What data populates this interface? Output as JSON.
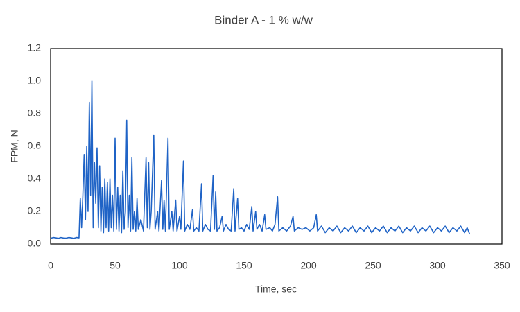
{
  "chart_data": {
    "type": "line",
    "title": "Binder A - 1 % w/w",
    "x_label": "Time, sec",
    "y_label": "FPM, N",
    "color": "#1f63c6",
    "grid": false,
    "xlim": [
      0,
      350
    ],
    "xticks": [
      0,
      50,
      100,
      150,
      200,
      250,
      300,
      350
    ],
    "ylim": [
      0,
      1.2
    ],
    "yticks": [
      {
        "value": 0,
        "label": "0.0"
      },
      0.2,
      0.4,
      0.6,
      0.8,
      {
        "value": 1,
        "label": "1.0"
      },
      1.2
    ],
    "x": [
      0,
      2,
      4,
      6,
      8,
      10,
      12,
      14,
      16,
      18,
      20,
      22,
      23,
      24,
      25,
      26,
      27,
      28,
      29,
      30,
      31,
      32,
      33,
      34,
      35,
      36,
      37,
      38,
      39,
      40,
      41,
      42,
      43,
      44,
      45,
      46,
      47,
      48,
      49,
      50,
      51,
      52,
      53,
      54,
      55,
      56,
      57,
      58,
      59,
      60,
      61,
      62,
      63,
      64,
      65,
      66,
      67,
      68,
      70,
      72,
      74,
      75,
      76,
      77,
      78,
      80,
      81,
      83,
      84,
      86,
      87,
      88,
      89,
      91,
      92,
      94,
      95,
      97,
      98,
      100,
      101,
      103,
      104,
      106,
      108,
      110,
      111,
      113,
      115,
      117,
      118,
      120,
      122,
      124,
      126,
      127,
      128,
      129,
      131,
      133,
      134,
      136,
      138,
      140,
      142,
      143,
      145,
      146,
      148,
      150,
      152,
      154,
      156,
      157,
      159,
      160,
      162,
      164,
      166,
      167,
      170,
      172,
      174,
      176,
      177,
      180,
      183,
      186,
      188,
      189,
      192,
      195,
      198,
      201,
      204,
      206,
      207,
      210,
      213,
      216,
      219,
      222,
      225,
      228,
      231,
      234,
      237,
      240,
      243,
      246,
      249,
      252,
      255,
      258,
      261,
      264,
      267,
      270,
      273,
      276,
      279,
      282,
      285,
      288,
      291,
      294,
      297,
      300,
      303,
      306,
      309,
      312,
      315,
      318,
      321,
      323,
      325
    ],
    "values": [
      0.035,
      0.04,
      0.038,
      0.035,
      0.04,
      0.037,
      0.036,
      0.04,
      0.038,
      0.035,
      0.04,
      0.038,
      0.28,
      0.1,
      0.3,
      0.55,
      0.15,
      0.6,
      0.2,
      0.87,
      0.3,
      1.0,
      0.1,
      0.5,
      0.25,
      0.59,
      0.1,
      0.48,
      0.08,
      0.35,
      0.07,
      0.4,
      0.1,
      0.38,
      0.08,
      0.4,
      0.1,
      0.3,
      0.08,
      0.65,
      0.09,
      0.35,
      0.08,
      0.3,
      0.07,
      0.45,
      0.09,
      0.2,
      0.76,
      0.1,
      0.3,
      0.08,
      0.53,
      0.09,
      0.2,
      0.08,
      0.28,
      0.09,
      0.15,
      0.08,
      0.53,
      0.1,
      0.5,
      0.09,
      0.2,
      0.67,
      0.09,
      0.2,
      0.08,
      0.39,
      0.09,
      0.27,
      0.08,
      0.65,
      0.09,
      0.2,
      0.08,
      0.27,
      0.08,
      0.17,
      0.09,
      0.51,
      0.08,
      0.12,
      0.09,
      0.21,
      0.08,
      0.1,
      0.08,
      0.37,
      0.08,
      0.12,
      0.09,
      0.08,
      0.42,
      0.09,
      0.32,
      0.08,
      0.1,
      0.17,
      0.08,
      0.12,
      0.09,
      0.08,
      0.34,
      0.08,
      0.28,
      0.09,
      0.1,
      0.08,
      0.12,
      0.09,
      0.23,
      0.08,
      0.2,
      0.09,
      0.12,
      0.08,
      0.18,
      0.09,
      0.1,
      0.08,
      0.12,
      0.29,
      0.08,
      0.1,
      0.08,
      0.11,
      0.17,
      0.08,
      0.1,
      0.09,
      0.1,
      0.08,
      0.1,
      0.18,
      0.08,
      0.11,
      0.07,
      0.1,
      0.08,
      0.11,
      0.07,
      0.1,
      0.08,
      0.11,
      0.07,
      0.1,
      0.08,
      0.11,
      0.07,
      0.1,
      0.08,
      0.11,
      0.07,
      0.1,
      0.08,
      0.11,
      0.07,
      0.1,
      0.08,
      0.11,
      0.07,
      0.1,
      0.08,
      0.11,
      0.07,
      0.1,
      0.08,
      0.11,
      0.07,
      0.1,
      0.08,
      0.11,
      0.07,
      0.1,
      0.06
    ]
  }
}
